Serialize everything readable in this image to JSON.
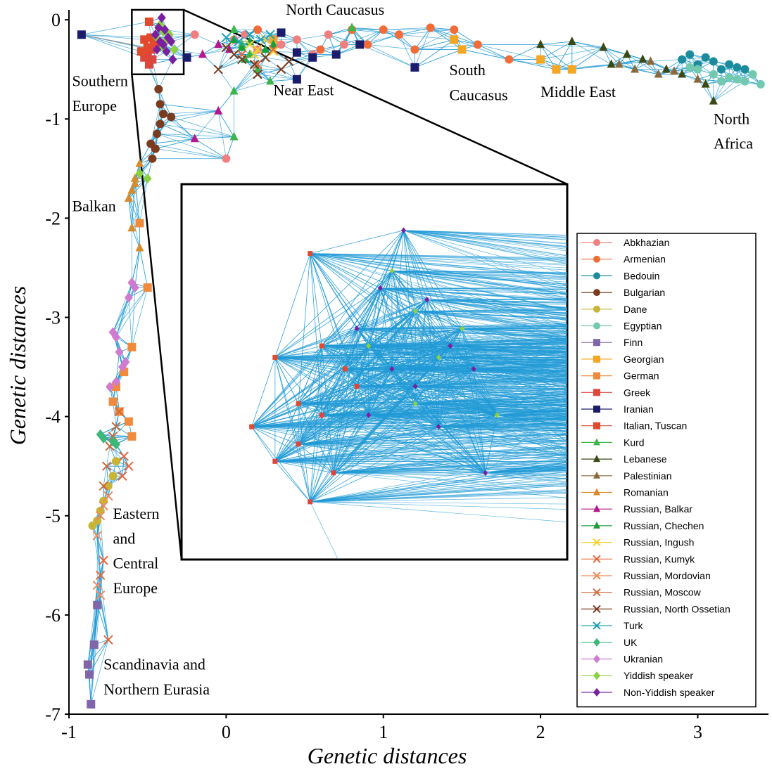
{
  "chart_data": {
    "type": "scatter",
    "title": "",
    "xlabel": "Genetic distances",
    "ylabel": "Genetic distances",
    "xlim": [
      -1,
      3.45
    ],
    "ylim": [
      -7,
      0.1
    ],
    "xticks": [
      -1,
      0,
      1,
      2,
      3
    ],
    "yticks": [
      0,
      -1,
      -2,
      -3,
      -4,
      -5,
      -6,
      -7
    ],
    "grid": false,
    "legend_position": "lower-right",
    "edge_color": "#1f9ad6",
    "region_labels": [
      {
        "text": "North Caucasus",
        "x": 0.38,
        "y": 0.05
      },
      {
        "text": "Southern",
        "x": -0.98,
        "y": -0.67
      },
      {
        "text": "Europe",
        "x": -0.98,
        "y": -0.92
      },
      {
        "text": "Near East",
        "x": 0.3,
        "y": -0.76
      },
      {
        "text": "South",
        "x": 1.42,
        "y": -0.56
      },
      {
        "text": "Caucasus",
        "x": 1.42,
        "y": -0.81
      },
      {
        "text": "Middle East",
        "x": 2.0,
        "y": -0.78
      },
      {
        "text": "North",
        "x": 3.1,
        "y": -1.05
      },
      {
        "text": "Africa",
        "x": 3.1,
        "y": -1.3
      },
      {
        "text": "Balkan",
        "x": -0.98,
        "y": -1.93
      },
      {
        "text": "Eastern",
        "x": -0.72,
        "y": -5.03
      },
      {
        "text": "and",
        "x": -0.72,
        "y": -5.28
      },
      {
        "text": "Central",
        "x": -0.72,
        "y": -5.53
      },
      {
        "text": "Europe",
        "x": -0.72,
        "y": -5.78
      },
      {
        "text": "Scandinavia and",
        "x": -0.78,
        "y": -6.55
      },
      {
        "text": "Northern Eurasia",
        "x": -0.78,
        "y": -6.8
      }
    ],
    "zoom_box": {
      "xlim": [
        -0.6,
        -0.27
      ],
      "ylim": [
        -0.55,
        0.1
      ]
    },
    "series": [
      {
        "name": "Abkhazian",
        "color": "#f08080",
        "marker": "circle",
        "points": [
          [
            0.05,
            -0.2
          ],
          [
            0.12,
            -0.15
          ],
          [
            0.2,
            -0.3
          ],
          [
            0.35,
            -0.25
          ],
          [
            0.45,
            -0.2
          ],
          [
            0.55,
            -0.35
          ],
          [
            0.65,
            -0.15
          ],
          [
            0.75,
            -0.25
          ],
          [
            0.0,
            -1.4
          ],
          [
            -0.2,
            -0.15
          ]
        ]
      },
      {
        "name": "Armenian",
        "color": "#f26c3a",
        "marker": "circle",
        "points": [
          [
            1.0,
            -0.1
          ],
          [
            1.1,
            -0.15
          ],
          [
            1.3,
            -0.08
          ],
          [
            1.45,
            -0.1
          ],
          [
            1.2,
            -0.3
          ],
          [
            1.6,
            -0.25
          ],
          [
            1.8,
            -0.4
          ],
          [
            0.9,
            -0.25
          ],
          [
            0.8,
            -0.1
          ],
          [
            0.2,
            -0.1
          ],
          [
            0.6,
            -0.3
          ]
        ]
      },
      {
        "name": "Bedouin",
        "color": "#1c8c9c",
        "marker": "circle",
        "points": [
          [
            2.9,
            -0.4
          ],
          [
            2.95,
            -0.35
          ],
          [
            3.0,
            -0.45
          ],
          [
            3.05,
            -0.38
          ],
          [
            3.1,
            -0.42
          ],
          [
            3.15,
            -0.5
          ],
          [
            3.2,
            -0.45
          ],
          [
            3.25,
            -0.48
          ],
          [
            3.3,
            -0.5
          ]
        ]
      },
      {
        "name": "Bulgarian",
        "color": "#7a3b1e",
        "marker": "circle",
        "points": [
          [
            -0.43,
            -0.7
          ],
          [
            -0.42,
            -0.85
          ],
          [
            -0.4,
            -0.95
          ],
          [
            -0.35,
            -0.98
          ],
          [
            -0.42,
            -1.05
          ],
          [
            -0.45,
            -1.3
          ],
          [
            -0.47,
            -1.4
          ],
          [
            -0.48,
            -1.25
          ],
          [
            -0.44,
            -1.15
          ]
        ]
      },
      {
        "name": "Dane",
        "color": "#c8b436",
        "marker": "circle",
        "points": [
          [
            -0.7,
            -4.45
          ],
          [
            -0.72,
            -4.6
          ],
          [
            -0.75,
            -4.7
          ],
          [
            -0.78,
            -4.85
          ],
          [
            -0.8,
            -4.95
          ],
          [
            -0.82,
            -5.05
          ],
          [
            -0.85,
            -5.1
          ]
        ]
      },
      {
        "name": "Egyptian",
        "color": "#73c9b0",
        "marker": "circle",
        "points": [
          [
            3.0,
            -0.5
          ],
          [
            3.1,
            -0.55
          ],
          [
            3.2,
            -0.58
          ],
          [
            3.25,
            -0.6
          ],
          [
            3.3,
            -0.62
          ],
          [
            3.4,
            -0.65
          ],
          [
            3.35,
            -0.55
          ],
          [
            3.15,
            -0.62
          ],
          [
            2.95,
            -0.48
          ]
        ]
      },
      {
        "name": "Finn",
        "color": "#8066a8",
        "marker": "square",
        "points": [
          [
            -0.88,
            -6.5
          ],
          [
            -0.87,
            -6.6
          ],
          [
            -0.86,
            -6.9
          ],
          [
            -0.84,
            -6.3
          ],
          [
            -0.82,
            -5.9
          ]
        ]
      },
      {
        "name": "Georgian",
        "color": "#f5a623",
        "marker": "square",
        "points": [
          [
            1.45,
            -0.2
          ],
          [
            1.5,
            -0.3
          ],
          [
            2.0,
            -0.4
          ],
          [
            2.1,
            -0.5
          ],
          [
            2.2,
            -0.5
          ],
          [
            0.3,
            -0.2
          ]
        ]
      },
      {
        "name": "German",
        "color": "#f08a3c",
        "marker": "square",
        "points": [
          [
            -0.55,
            -2.05
          ],
          [
            -0.5,
            -2.7
          ],
          [
            -0.6,
            -3.3
          ],
          [
            -0.65,
            -3.55
          ],
          [
            -0.7,
            -3.7
          ],
          [
            -0.72,
            -3.85
          ],
          [
            -0.68,
            -3.95
          ],
          [
            -0.62,
            -4.05
          ],
          [
            -0.6,
            -4.2
          ]
        ]
      },
      {
        "name": "Greek",
        "color": "#e0453c",
        "marker": "square",
        "points": [
          [
            -0.48,
            -0.3
          ],
          [
            -0.5,
            -0.35
          ],
          [
            -0.52,
            -0.38
          ],
          [
            -0.47,
            -0.4
          ],
          [
            -0.49,
            -0.45
          ],
          [
            -0.45,
            -0.25
          ]
        ]
      },
      {
        "name": "Iranian",
        "color": "#1c1c6c",
        "marker": "square",
        "points": [
          [
            -0.92,
            -0.15
          ],
          [
            0.35,
            -0.13
          ],
          [
            0.45,
            -0.33
          ],
          [
            0.55,
            -0.38
          ],
          [
            0.7,
            -0.35
          ],
          [
            0.85,
            -0.25
          ],
          [
            1.2,
            -0.48
          ],
          [
            0.45,
            -0.6
          ],
          [
            -0.25,
            -0.38
          ]
        ]
      },
      {
        "name": "Italian, Tuscan",
        "color": "#e24a2e",
        "marker": "square",
        "points": [
          [
            -0.49,
            -0.02
          ],
          [
            -0.52,
            -0.2
          ],
          [
            -0.5,
            -0.28
          ],
          [
            -0.46,
            -0.22
          ],
          [
            -0.54,
            -0.32
          ],
          [
            -0.48,
            -0.18
          ]
        ]
      },
      {
        "name": "Kurd",
        "color": "#3cb54a",
        "marker": "triangle",
        "points": [
          [
            0.05,
            -0.1
          ],
          [
            0.1,
            -0.25
          ],
          [
            0.2,
            -0.5
          ],
          [
            0.15,
            -0.35
          ],
          [
            0.8,
            -0.08
          ],
          [
            0.05,
            -1.18
          ],
          [
            0.05,
            -0.72
          ],
          [
            0.28,
            -0.62
          ]
        ]
      },
      {
        "name": "Lebanese",
        "color": "#3a4a14",
        "marker": "triangle",
        "points": [
          [
            2.0,
            -0.25
          ],
          [
            2.2,
            -0.22
          ],
          [
            2.4,
            -0.28
          ],
          [
            2.55,
            -0.35
          ],
          [
            2.65,
            -0.4
          ],
          [
            2.8,
            -0.5
          ],
          [
            2.9,
            -0.55
          ],
          [
            3.05,
            -0.65
          ],
          [
            3.1,
            -0.82
          ],
          [
            2.45,
            -0.45
          ]
        ]
      },
      {
        "name": "Palestinian",
        "color": "#8a6a3c",
        "marker": "triangle",
        "points": [
          [
            2.5,
            -0.45
          ],
          [
            2.6,
            -0.5
          ],
          [
            2.75,
            -0.55
          ],
          [
            2.85,
            -0.52
          ],
          [
            3.0,
            -0.6
          ],
          [
            2.7,
            -0.42
          ]
        ]
      },
      {
        "name": "Romanian",
        "color": "#d98a2a",
        "marker": "triangle",
        "points": [
          [
            -0.55,
            -1.45
          ],
          [
            -0.58,
            -1.6
          ],
          [
            -0.6,
            -1.72
          ],
          [
            -0.62,
            -1.8
          ],
          [
            -0.6,
            -2.1
          ],
          [
            -0.55,
            -2.3
          ],
          [
            -0.58,
            -1.65
          ]
        ]
      },
      {
        "name": "Russian, Balkar",
        "color": "#b3188c",
        "marker": "triangle",
        "points": [
          [
            -0.05,
            -0.92
          ],
          [
            -0.2,
            -1.2
          ],
          [
            -0.15,
            -0.35
          ],
          [
            -0.05,
            -0.25
          ],
          [
            0.02,
            -0.3
          ]
        ]
      },
      {
        "name": "Russian, Chechen",
        "color": "#1a9e3c",
        "marker": "triangle",
        "points": [
          [
            0.05,
            -0.2
          ],
          [
            0.1,
            -0.28
          ],
          [
            0.15,
            -0.22
          ],
          [
            0.25,
            -0.3
          ],
          [
            0.3,
            -0.25
          ],
          [
            0.12,
            -0.4
          ]
        ]
      },
      {
        "name": "Russian, Ingush",
        "color": "#f5d230",
        "marker": "x",
        "points": [
          [
            0.15,
            -0.25
          ],
          [
            0.2,
            -0.3
          ],
          [
            0.25,
            -0.2
          ],
          [
            0.3,
            -0.32
          ],
          [
            0.18,
            -0.35
          ]
        ]
      },
      {
        "name": "Russian, Kumyk",
        "color": "#e8643a",
        "marker": "x",
        "points": [
          [
            0.1,
            -0.35
          ],
          [
            0.2,
            -0.45
          ],
          [
            0.3,
            -0.3
          ],
          [
            -0.65,
            -4.4
          ],
          [
            -0.62,
            -4.5
          ],
          [
            -0.66,
            -4.6
          ],
          [
            -0.75,
            -6.25
          ],
          [
            -0.78,
            -5.45
          ],
          [
            -0.8,
            -5.6
          ]
        ]
      },
      {
        "name": "Russian, Mordovian",
        "color": "#f28a5a",
        "marker": "x",
        "points": [
          [
            -0.75,
            -4.8
          ],
          [
            -0.78,
            -4.9
          ],
          [
            -0.8,
            -5.0
          ],
          [
            -0.82,
            -5.2
          ],
          [
            -0.8,
            -5.8
          ],
          [
            -0.82,
            -5.7
          ]
        ]
      },
      {
        "name": "Russian, Moscow",
        "color": "#d0683a",
        "marker": "x",
        "points": [
          [
            -0.68,
            -3.95
          ],
          [
            -0.7,
            -4.1
          ],
          [
            -0.72,
            -4.2
          ],
          [
            -0.74,
            -4.3
          ],
          [
            -0.76,
            -4.5
          ],
          [
            -0.78,
            -4.7
          ]
        ]
      },
      {
        "name": "Russian, North Ossetian",
        "color": "#7a3b1e",
        "marker": "x",
        "points": [
          [
            0.0,
            -0.28
          ],
          [
            0.05,
            -0.35
          ],
          [
            0.1,
            -0.4
          ],
          [
            0.18,
            -0.45
          ],
          [
            0.25,
            -0.38
          ],
          [
            -0.05,
            -0.5
          ],
          [
            0.2,
            -0.55
          ],
          [
            0.35,
            -0.5
          ],
          [
            0.4,
            -0.42
          ]
        ]
      },
      {
        "name": "Turk",
        "color": "#1ca0b4",
        "marker": "x",
        "points": [
          [
            0.0,
            -0.18
          ],
          [
            0.08,
            -0.22
          ],
          [
            0.15,
            -0.15
          ],
          [
            0.22,
            -0.2
          ],
          [
            0.28,
            -0.15
          ]
        ]
      },
      {
        "name": "UK",
        "color": "#3cb878",
        "marker": "diamond",
        "points": [
          [
            -0.8,
            -4.18
          ],
          [
            -0.78,
            -4.22
          ],
          [
            -0.72,
            -4.25
          ],
          [
            -0.7,
            -4.28
          ]
        ]
      },
      {
        "name": "Ukranian",
        "color": "#d07ad0",
        "marker": "diamond",
        "points": [
          [
            -0.72,
            -3.15
          ],
          [
            -0.7,
            -3.2
          ],
          [
            -0.68,
            -3.35
          ],
          [
            -0.66,
            -3.5
          ],
          [
            -0.7,
            -3.65
          ],
          [
            -0.74,
            -3.7
          ],
          [
            -0.6,
            -2.65
          ],
          [
            -0.58,
            -2.7
          ],
          [
            -0.62,
            -2.8
          ],
          [
            -0.64,
            -3.45
          ]
        ]
      },
      {
        "name": "Yiddish speaker",
        "color": "#8cd140",
        "marker": "diamond",
        "points": [
          [
            -0.42,
            -0.05
          ],
          [
            -0.4,
            -0.12
          ],
          [
            -0.38,
            -0.2
          ],
          [
            -0.44,
            -0.18
          ],
          [
            -0.36,
            -0.15
          ],
          [
            -0.4,
            -0.28
          ],
          [
            -0.33,
            -0.3
          ],
          [
            -0.55,
            -1.55
          ],
          [
            -0.5,
            -1.6
          ]
        ]
      },
      {
        "name": "Non-Yiddish speaker",
        "color": "#7a1fa0",
        "marker": "diamond",
        "points": [
          [
            -0.41,
            0.02
          ],
          [
            -0.43,
            -0.08
          ],
          [
            -0.39,
            -0.1
          ],
          [
            -0.45,
            -0.15
          ],
          [
            -0.37,
            -0.18
          ],
          [
            -0.42,
            -0.22
          ],
          [
            -0.4,
            -0.25
          ],
          [
            -0.35,
            -0.22
          ],
          [
            -0.38,
            -0.32
          ],
          [
            -0.34,
            -0.4
          ],
          [
            -0.44,
            -0.3
          ]
        ]
      }
    ]
  }
}
